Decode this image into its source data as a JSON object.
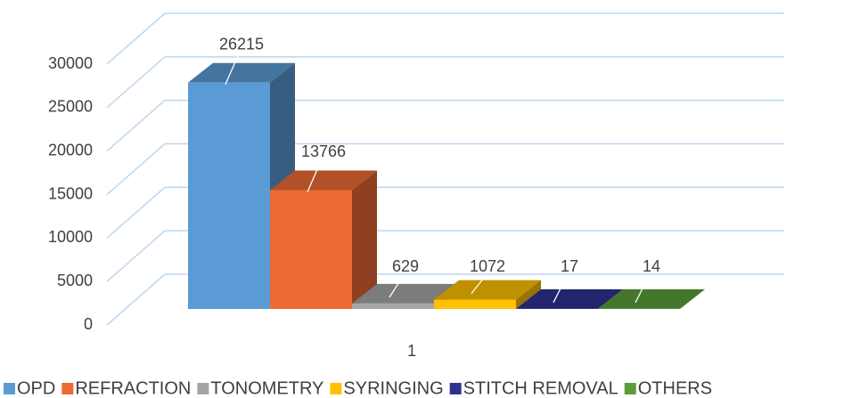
{
  "chart_data": {
    "type": "bar3d",
    "categories": [
      "1"
    ],
    "series": [
      {
        "name": "OPD",
        "color": "#5b9bd5",
        "values": [
          26215
        ]
      },
      {
        "name": "REFRACTION",
        "color": "#ed6a35",
        "values": [
          13766
        ]
      },
      {
        "name": "TONOMETRY",
        "color": "#a5a5a5",
        "values": [
          629
        ]
      },
      {
        "name": "SYRINGING",
        "color": "#ffc000",
        "values": [
          1072
        ]
      },
      {
        "name": "STITCH REMOVAL",
        "color": "#2e3192",
        "values": [
          17
        ]
      },
      {
        "name": "OTHERS",
        "color": "#5a9e3a",
        "values": [
          14
        ]
      }
    ],
    "ylim": [
      0,
      30000
    ],
    "yticks": [
      0,
      5000,
      10000,
      15000,
      20000,
      25000,
      30000
    ],
    "grid": true,
    "legend": "bottom"
  }
}
